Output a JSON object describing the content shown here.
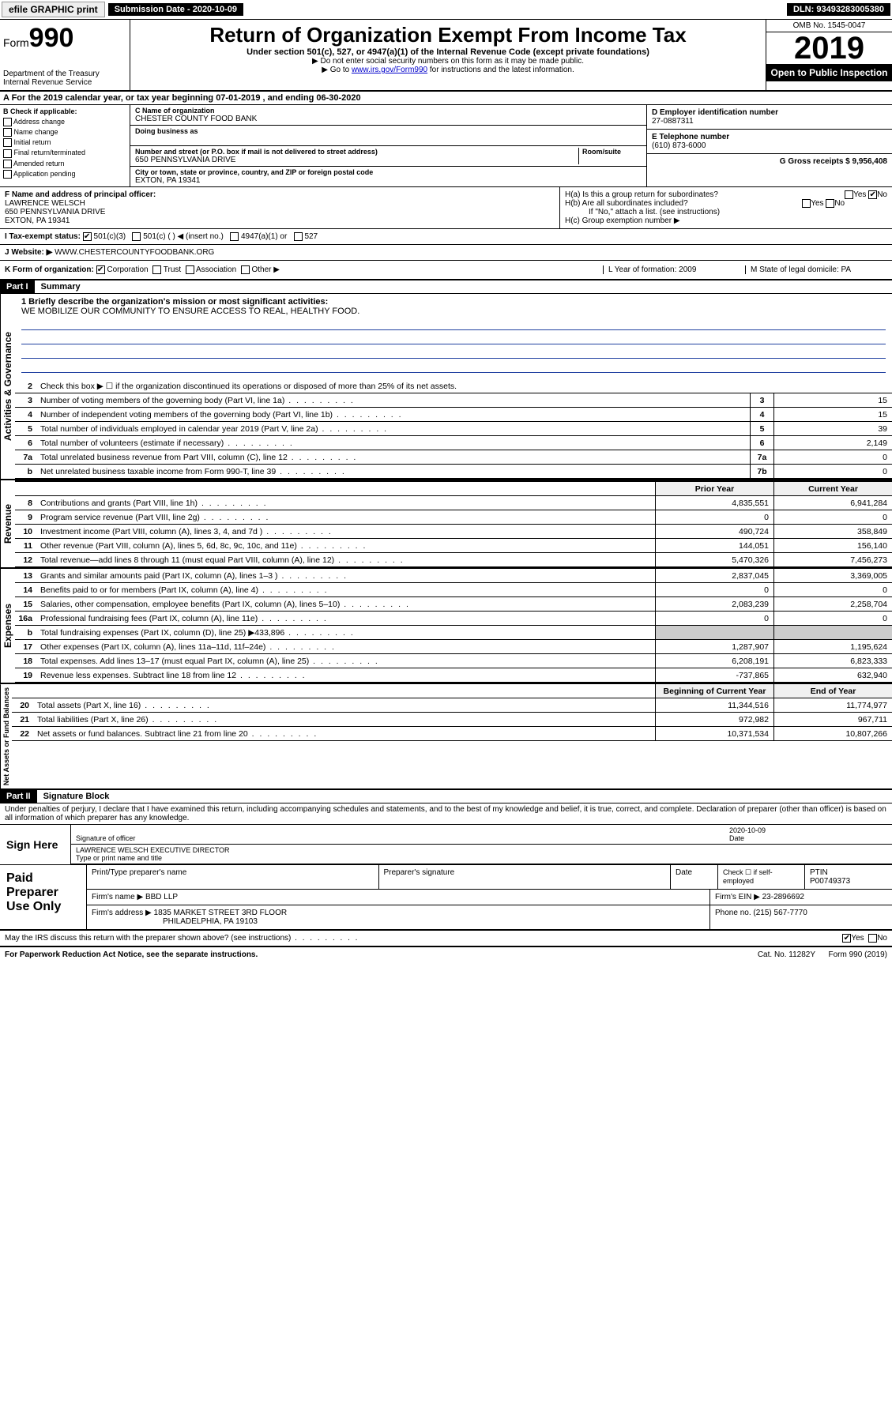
{
  "topbar": {
    "efile": "efile GRAPHIC print",
    "sub_label": "Submission Date - 2020-10-09",
    "dln": "DLN: 93493283005380"
  },
  "header": {
    "form_label": "Form",
    "form_num": "990",
    "dept": "Department of the Treasury\nInternal Revenue Service",
    "title": "Return of Organization Exempt From Income Tax",
    "subtitle": "Under section 501(c), 527, or 4947(a)(1) of the Internal Revenue Code (except private foundations)",
    "note1": "▶ Do not enter social security numbers on this form as it may be made public.",
    "note2_pre": "▶ Go to ",
    "note2_link": "www.irs.gov/Form990",
    "note2_post": " for instructions and the latest information.",
    "omb": "OMB No. 1545-0047",
    "year": "2019",
    "open": "Open to Public Inspection"
  },
  "period": {
    "text": "A For the 2019 calendar year, or tax year beginning 07-01-2019    , and ending 06-30-2020"
  },
  "section_b": {
    "label": "B Check if applicable:",
    "items": [
      "Address change",
      "Name change",
      "Initial return",
      "Final return/terminated",
      "Amended return",
      "Application pending"
    ]
  },
  "section_c": {
    "name_label": "C Name of organization",
    "name": "CHESTER COUNTY FOOD BANK",
    "dba_label": "Doing business as",
    "addr_label": "Number and street (or P.O. box if mail is not delivered to street address)",
    "room_label": "Room/suite",
    "addr": "650 PENNSYLVANIA DRIVE",
    "city_label": "City or town, state or province, country, and ZIP or foreign postal code",
    "city": "EXTON, PA  19341"
  },
  "section_de": {
    "d_label": "D Employer identification number",
    "d_val": "27-0887311",
    "e_label": "E Telephone number",
    "e_val": "(610) 873-6000",
    "g_label": "G Gross receipts $ 9,956,408"
  },
  "section_f": {
    "label": "F  Name and address of principal officer:",
    "name": "LAWRENCE WELSCH",
    "addr1": "650 PENNSYLVANIA DRIVE",
    "addr2": "EXTON, PA  19341"
  },
  "section_h": {
    "ha": "H(a)  Is this a group return for subordinates?",
    "hb": "H(b)  Are all subordinates included?",
    "hb_note": "If \"No,\" attach a list. (see instructions)",
    "hc": "H(c)  Group exemption number ▶"
  },
  "section_i": {
    "label": "I    Tax-exempt status:",
    "opts": [
      "501(c)(3)",
      "501(c) (   ) ◀ (insert no.)",
      "4947(a)(1) or",
      "527"
    ]
  },
  "section_j": {
    "label": "J    Website: ▶",
    "val": "WWW.CHESTERCOUNTYFOODBANK.ORG"
  },
  "section_k": {
    "label": "K Form of organization:",
    "opts": [
      "Corporation",
      "Trust",
      "Association",
      "Other ▶"
    ],
    "l_label": "L Year of formation: 2009",
    "m_label": "M State of legal domicile: PA"
  },
  "part1": {
    "hdr": "Part I",
    "title": "Summary",
    "line1": "1  Briefly describe the organization's mission or most significant activities:",
    "mission": "WE MOBILIZE OUR COMMUNITY TO ENSURE ACCESS TO REAL, HEALTHY FOOD.",
    "line2": "Check this box ▶ ☐  if the organization discontinued its operations or disposed of more than 25% of its net assets.",
    "vlabels": {
      "gov": "Activities & Governance",
      "rev": "Revenue",
      "exp": "Expenses",
      "net": "Net Assets or Fund Balances"
    },
    "col_prior": "Prior Year",
    "col_current": "Current Year",
    "col_beg": "Beginning of Current Year",
    "col_end": "End of Year",
    "rows_gov": [
      {
        "n": "3",
        "d": "Number of voting members of the governing body (Part VI, line 1a)",
        "b": "3",
        "v": "15"
      },
      {
        "n": "4",
        "d": "Number of independent voting members of the governing body (Part VI, line 1b)",
        "b": "4",
        "v": "15"
      },
      {
        "n": "5",
        "d": "Total number of individuals employed in calendar year 2019 (Part V, line 2a)",
        "b": "5",
        "v": "39"
      },
      {
        "n": "6",
        "d": "Total number of volunteers (estimate if necessary)",
        "b": "6",
        "v": "2,149"
      },
      {
        "n": "7a",
        "d": "Total unrelated business revenue from Part VIII, column (C), line 12",
        "b": "7a",
        "v": "0"
      },
      {
        "n": "b",
        "d": "Net unrelated business taxable income from Form 990-T, line 39",
        "b": "7b",
        "v": "0"
      }
    ],
    "rows_rev": [
      {
        "n": "8",
        "d": "Contributions and grants (Part VIII, line 1h)",
        "p": "4,835,551",
        "c": "6,941,284"
      },
      {
        "n": "9",
        "d": "Program service revenue (Part VIII, line 2g)",
        "p": "0",
        "c": "0"
      },
      {
        "n": "10",
        "d": "Investment income (Part VIII, column (A), lines 3, 4, and 7d )",
        "p": "490,724",
        "c": "358,849"
      },
      {
        "n": "11",
        "d": "Other revenue (Part VIII, column (A), lines 5, 6d, 8c, 9c, 10c, and 11e)",
        "p": "144,051",
        "c": "156,140"
      },
      {
        "n": "12",
        "d": "Total revenue—add lines 8 through 11 (must equal Part VIII, column (A), line 12)",
        "p": "5,470,326",
        "c": "7,456,273"
      }
    ],
    "rows_exp": [
      {
        "n": "13",
        "d": "Grants and similar amounts paid (Part IX, column (A), lines 1–3 )",
        "p": "2,837,045",
        "c": "3,369,005"
      },
      {
        "n": "14",
        "d": "Benefits paid to or for members (Part IX, column (A), line 4)",
        "p": "0",
        "c": "0"
      },
      {
        "n": "15",
        "d": "Salaries, other compensation, employee benefits (Part IX, column (A), lines 5–10)",
        "p": "2,083,239",
        "c": "2,258,704"
      },
      {
        "n": "16a",
        "d": "Professional fundraising fees (Part IX, column (A), line 11e)",
        "p": "0",
        "c": "0"
      },
      {
        "n": "b",
        "d": "Total fundraising expenses (Part IX, column (D), line 25) ▶433,896",
        "p": "",
        "c": "",
        "shade": true
      },
      {
        "n": "17",
        "d": "Other expenses (Part IX, column (A), lines 11a–11d, 11f–24e)",
        "p": "1,287,907",
        "c": "1,195,624"
      },
      {
        "n": "18",
        "d": "Total expenses. Add lines 13–17 (must equal Part IX, column (A), line 25)",
        "p": "6,208,191",
        "c": "6,823,333"
      },
      {
        "n": "19",
        "d": "Revenue less expenses. Subtract line 18 from line 12",
        "p": "-737,865",
        "c": "632,940"
      }
    ],
    "rows_net": [
      {
        "n": "20",
        "d": "Total assets (Part X, line 16)",
        "p": "11,344,516",
        "c": "11,774,977"
      },
      {
        "n": "21",
        "d": "Total liabilities (Part X, line 26)",
        "p": "972,982",
        "c": "967,711"
      },
      {
        "n": "22",
        "d": "Net assets or fund balances. Subtract line 21 from line 20",
        "p": "10,371,534",
        "c": "10,807,266"
      }
    ]
  },
  "part2": {
    "hdr": "Part II",
    "title": "Signature Block",
    "decl": "Under penalties of perjury, I declare that I have examined this return, including accompanying schedules and statements, and to the best of my knowledge and belief, it is true, correct, and complete. Declaration of preparer (other than officer) is based on all information of which preparer has any knowledge."
  },
  "sign": {
    "left": "Sign Here",
    "sig_label": "Signature of officer",
    "date": "2020-10-09",
    "date_label": "Date",
    "name": "LAWRENCE WELSCH  EXECUTIVE DIRECTOR",
    "name_label": "Type or print name and title"
  },
  "paid": {
    "left": "Paid Preparer Use Only",
    "h1": "Print/Type preparer's name",
    "h2": "Preparer's signature",
    "h3": "Date",
    "h4_a": "Check ☐ if self-employed",
    "h4_b": "PTIN",
    "ptin": "P00749373",
    "firm_label": "Firm's name    ▶",
    "firm": "BBD LLP",
    "ein_label": "Firm's EIN ▶",
    "ein": "23-2896692",
    "addr_label": "Firm's address ▶",
    "addr1": "1835 MARKET STREET 3RD FLOOR",
    "addr2": "PHILADELPHIA, PA  19103",
    "phone_label": "Phone no.",
    "phone": "(215) 567-7770"
  },
  "discuss": {
    "text": "May the IRS discuss this return with the preparer shown above? (see instructions)",
    "yes": "Yes",
    "no": "No"
  },
  "footer": {
    "left": "For Paperwork Reduction Act Notice, see the separate instructions.",
    "mid": "Cat. No. 11282Y",
    "right": "Form 990 (2019)"
  }
}
